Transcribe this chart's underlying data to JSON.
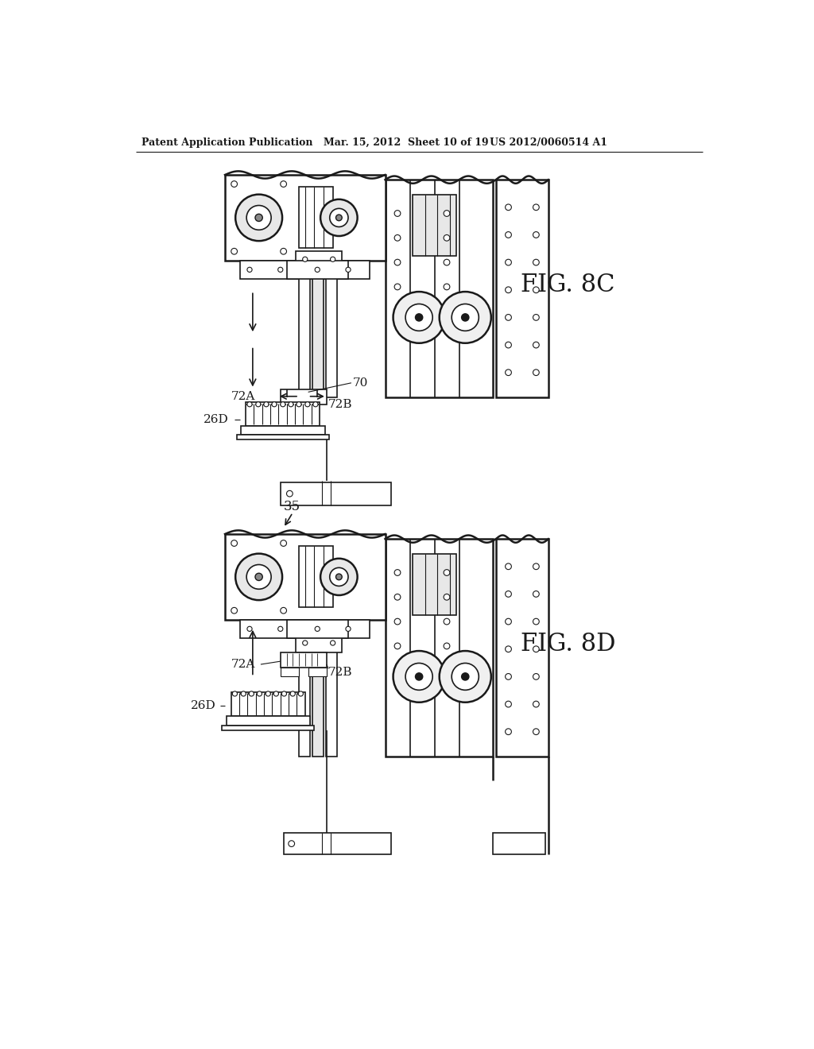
{
  "bg_color": "#ffffff",
  "lc": "#1a1a1a",
  "header_text": "Patent Application Publication",
  "header_date": "Mar. 15, 2012  Sheet 10 of 19",
  "header_patent": "US 2012/0060514 A1",
  "fig_8c": "FIG. 8C",
  "fig_8d": "FIG. 8D",
  "label_70": "70",
  "label_72a": "72A",
  "label_72b": "72B",
  "label_26d": "26D",
  "label_35": "35"
}
